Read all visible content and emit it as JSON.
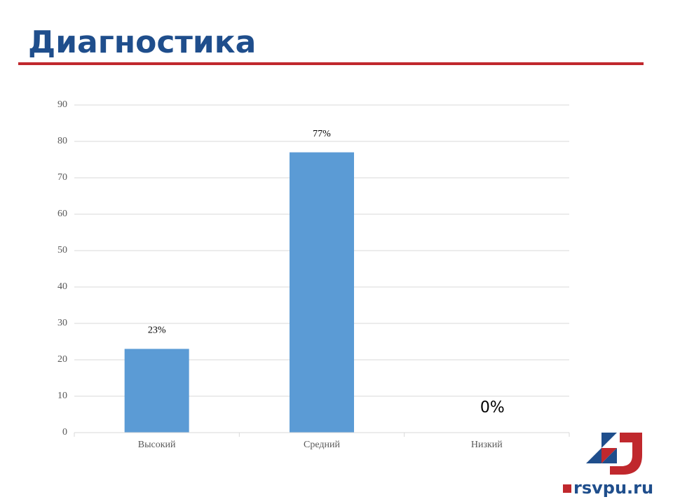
{
  "chart_data": {
    "type": "bar",
    "title": "Диагностика",
    "categories": [
      "Высокий",
      "Средний",
      "Низкий"
    ],
    "values": [
      23,
      77,
      0
    ],
    "value_labels": [
      "23%",
      "77%",
      "0%"
    ],
    "color": "#5b9bd5",
    "ylim": [
      0,
      90
    ],
    "yticks": [
      0,
      10,
      20,
      30,
      40,
      50,
      60,
      70,
      80,
      90
    ],
    "grid": true
  },
  "footer": {
    "logo_text": "rsvpu.ru"
  }
}
